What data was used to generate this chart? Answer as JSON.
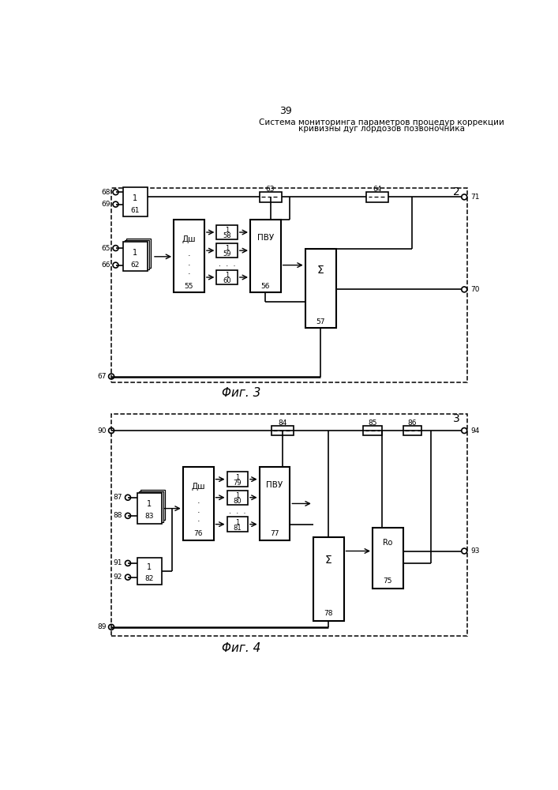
{
  "page_number": "39",
  "title_line1": "Система мониторинга параметров процедур коррекции",
  "title_line2": "кривизны дуг лордозов позвоночника",
  "fig3_label": "Φиг. 3",
  "fig4_label": "Φиг. 4",
  "background": "#ffffff"
}
